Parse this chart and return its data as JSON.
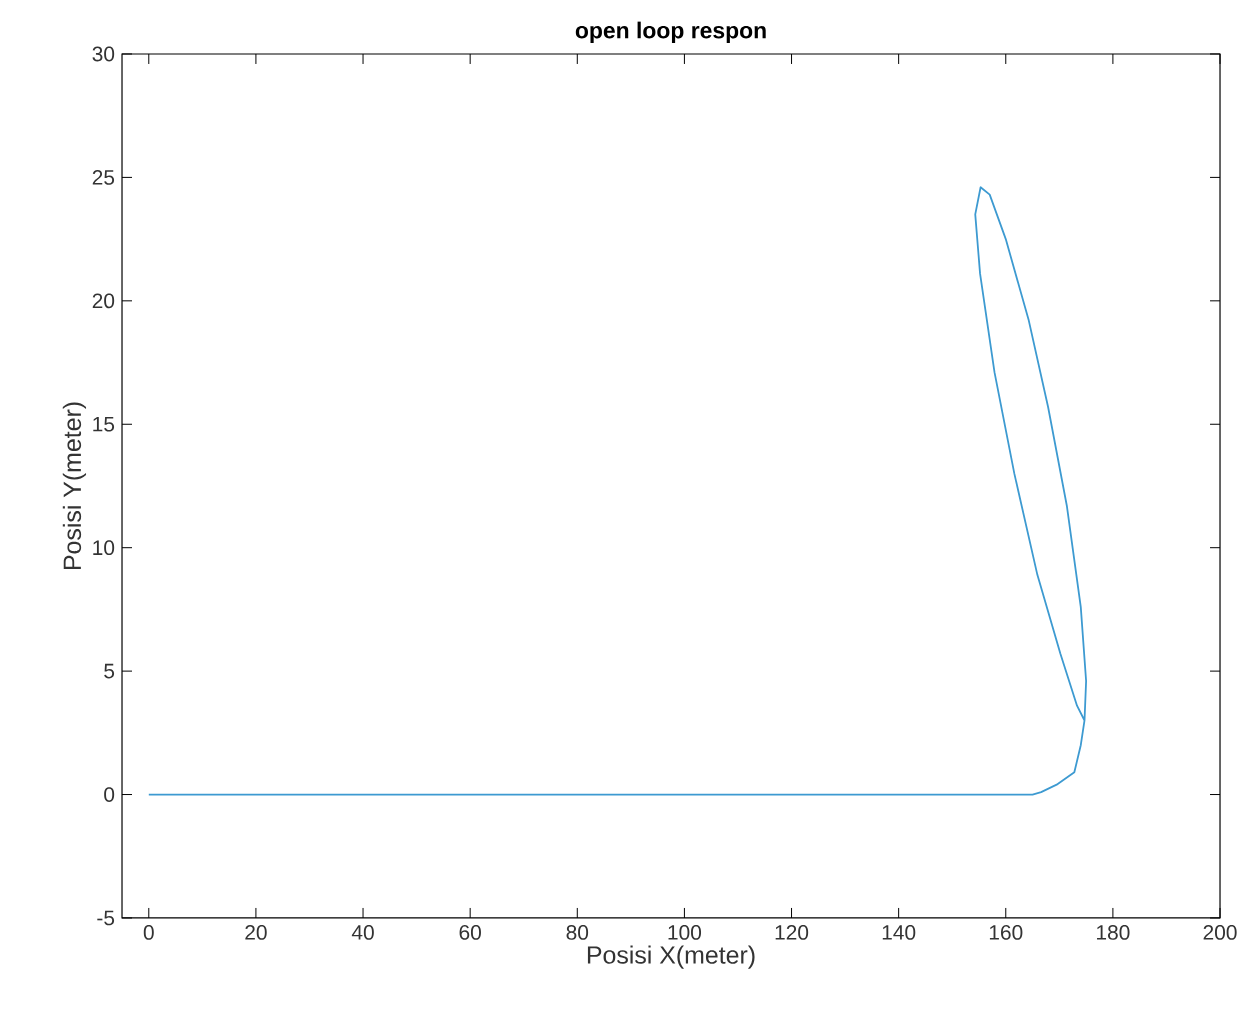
{
  "chart_data": {
    "type": "line",
    "title": "open loop respon",
    "xlabel": "Posisi X(meter)",
    "ylabel": "Posisi Y(meter)",
    "xlim": [
      -5,
      200
    ],
    "ylim": [
      -5,
      30
    ],
    "xticks": [
      0,
      20,
      40,
      60,
      80,
      100,
      120,
      140,
      160,
      180,
      200
    ],
    "yticks": [
      -5,
      0,
      5,
      10,
      15,
      20,
      25,
      30
    ],
    "grid": false,
    "marker": "none",
    "line_style": "solid",
    "series": [
      {
        "color": "#3d9ad1",
        "x": [
          0,
          165,
          166.6,
          169.5,
          172.8,
          174,
          174.7,
          175.0,
          174,
          171.4,
          167.9,
          164.3,
          160.0,
          157.0,
          155.3,
          154.3,
          155.2,
          157.9,
          161.6,
          165.9,
          170.2,
          173.3,
          174.7
        ],
        "values": [
          0,
          0,
          0.1,
          0.4,
          0.9,
          2.0,
          3.0,
          4.6,
          7.6,
          11.7,
          15.7,
          19.2,
          22.5,
          24.3,
          24.6,
          23.5,
          21.1,
          17.1,
          13.0,
          8.9,
          5.7,
          3.6,
          3.0
        ]
      }
    ]
  }
}
